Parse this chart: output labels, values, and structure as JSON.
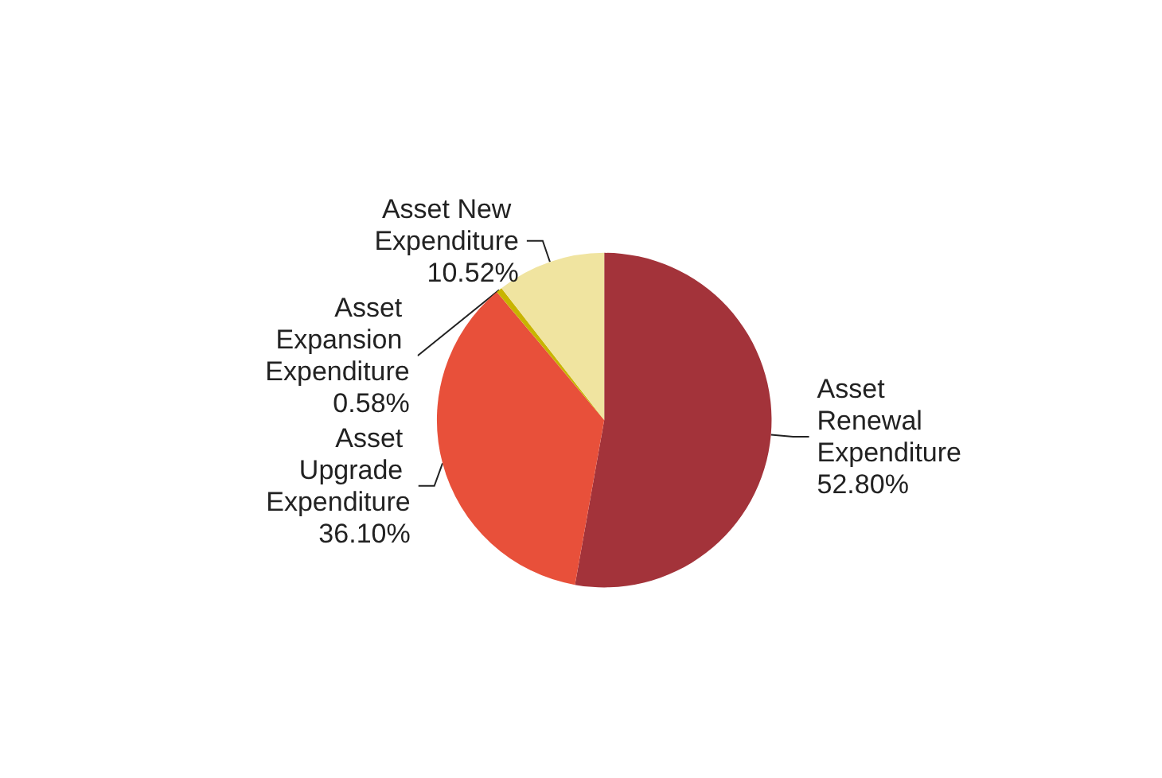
{
  "chart_data": {
    "type": "pie",
    "categories": [
      "Asset Renewal Expenditure",
      "Asset Upgrade Expenditure",
      "Asset Expansion Expenditure",
      "Asset New Expenditure"
    ],
    "values": [
      52.8,
      36.1,
      0.58,
      10.52
    ],
    "value_labels": [
      "52.80%",
      "36.10%",
      "0.58%",
      "10.52%"
    ],
    "colors": [
      "#a3333a",
      "#e8503a",
      "#c8b400",
      "#f0e4a0"
    ],
    "legend": false
  }
}
